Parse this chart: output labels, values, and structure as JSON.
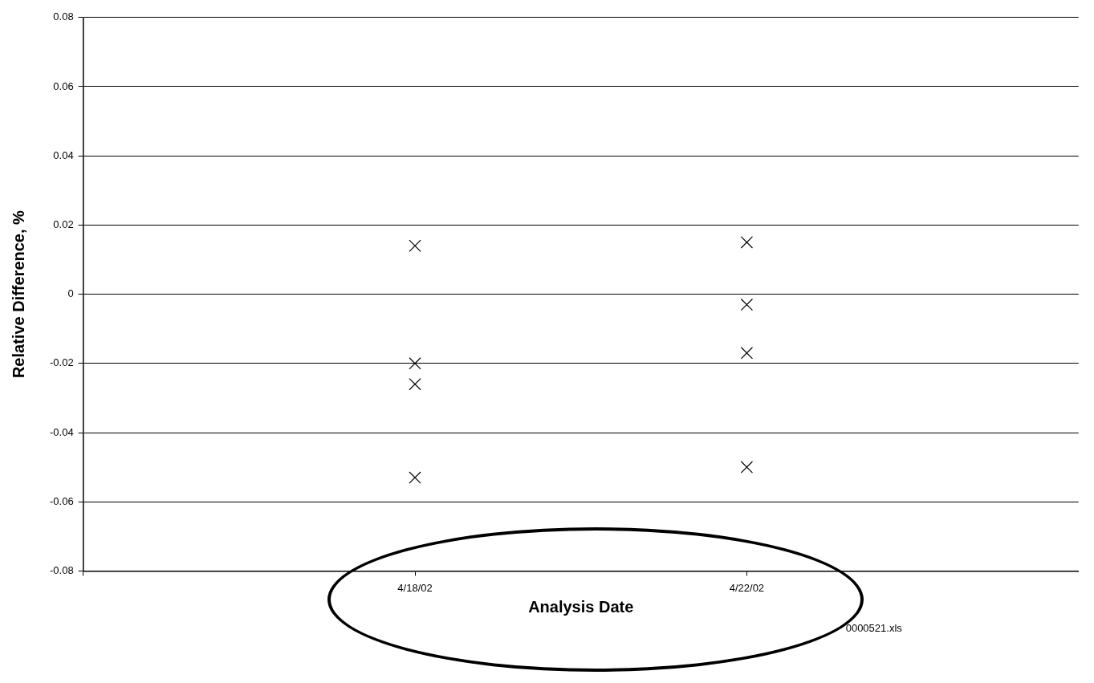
{
  "chart_data": {
    "type": "scatter",
    "xlabel": "Analysis Date",
    "ylabel": "Relative Difference, %",
    "x": [
      "--04-18",
      "--04-18",
      "--04-18",
      "--04-18",
      "--04-22",
      "--04-22",
      "--04-22",
      "--04-22"
    ],
    "series": [
      {
        "color": "#000000",
        "values": [
          0.014,
          -0.02,
          -0.026,
          -0.053,
          0.015,
          -0.003,
          -0.017,
          -0.05
        ]
      }
    ],
    "xlim": [
      "--04-14",
      "--04-26"
    ],
    "xticks": [
      {
        "value": "--04-14",
        "label": null
      },
      {
        "value": "--04-18",
        "label": "4/18/02"
      },
      {
        "value": "--04-22",
        "label": "4/22/02"
      }
    ],
    "ylim": [
      -0.08,
      0.08
    ],
    "yticks": [
      -0.08,
      -0.06,
      -0.04,
      -0.02,
      0,
      0.02,
      0.04,
      0.06,
      0.08
    ],
    "grid": "y",
    "marker": "cross",
    "legend": false,
    "annotations": [
      "0000521.xls"
    ]
  }
}
